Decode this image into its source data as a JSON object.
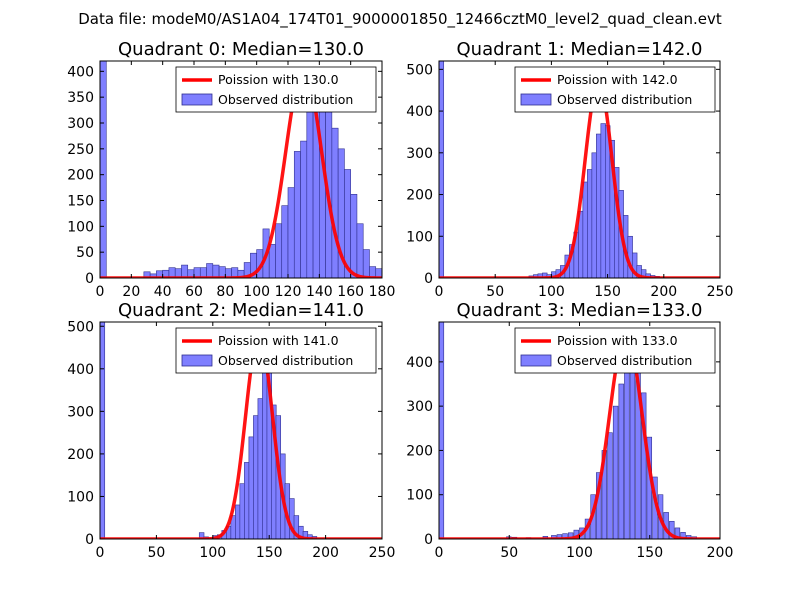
{
  "figure": {
    "suptitle": "Data file: modeM0/AS1A04_174T01_9000001850_12466cztM0_level2_quad_clean.evt"
  },
  "colors": {
    "hist_fill": "#7f7fff",
    "hist_edge": "#2f2f8f",
    "fit_line": "#ff0000"
  },
  "chart_data": [
    {
      "type": "bar",
      "title": "Quadrant 0: Median=130.0",
      "xlim": [
        0,
        180
      ],
      "ylim": [
        0,
        420
      ],
      "xticks": [
        "0",
        "20",
        "40",
        "60",
        "80",
        "100",
        "120",
        "140",
        "160",
        "180"
      ],
      "yticks": [
        "0",
        "50",
        "100",
        "150",
        "200",
        "250",
        "300",
        "350",
        "400"
      ],
      "bin_width": 4,
      "bins": [
        [
          0,
          420
        ],
        [
          28,
          12
        ],
        [
          32,
          8
        ],
        [
          36,
          14
        ],
        [
          40,
          15
        ],
        [
          44,
          20
        ],
        [
          48,
          18
        ],
        [
          52,
          25
        ],
        [
          56,
          16
        ],
        [
          60,
          20
        ],
        [
          64,
          20
        ],
        [
          68,
          28
        ],
        [
          72,
          25
        ],
        [
          76,
          22
        ],
        [
          80,
          18
        ],
        [
          84,
          20
        ],
        [
          88,
          15
        ],
        [
          92,
          30
        ],
        [
          96,
          48
        ],
        [
          100,
          55
        ],
        [
          104,
          95
        ],
        [
          108,
          65
        ],
        [
          112,
          105
        ],
        [
          116,
          140
        ],
        [
          120,
          175
        ],
        [
          124,
          245
        ],
        [
          128,
          265
        ],
        [
          132,
          330
        ],
        [
          136,
          400
        ],
        [
          140,
          375
        ],
        [
          144,
          330
        ],
        [
          148,
          290
        ],
        [
          152,
          250
        ],
        [
          156,
          210
        ],
        [
          160,
          162
        ],
        [
          164,
          105
        ],
        [
          168,
          55
        ],
        [
          172,
          22
        ],
        [
          176,
          18
        ]
      ],
      "series": [
        {
          "name": "Poission with 130.0",
          "kind": "line",
          "mu": 130.0,
          "peak": 405
        },
        {
          "name": "Observed distribution",
          "kind": "hist"
        }
      ],
      "legend_position": "upper-right"
    },
    {
      "type": "bar",
      "title": "Quadrant 1: Median=142.0",
      "xlim": [
        0,
        250
      ],
      "ylim": [
        0,
        520
      ],
      "xticks": [
        "0",
        "50",
        "100",
        "150",
        "200",
        "250"
      ],
      "yticks": [
        "0",
        "100",
        "200",
        "300",
        "400",
        "500"
      ],
      "bin_width": 4.2,
      "bins": [
        [
          0,
          520
        ],
        [
          80,
          5
        ],
        [
          84,
          8
        ],
        [
          88,
          10
        ],
        [
          92,
          12
        ],
        [
          96,
          8
        ],
        [
          100,
          15
        ],
        [
          104,
          20
        ],
        [
          108,
          30
        ],
        [
          112,
          55
        ],
        [
          116,
          80
        ],
        [
          120,
          110
        ],
        [
          124,
          160
        ],
        [
          128,
          230
        ],
        [
          132,
          260
        ],
        [
          136,
          300
        ],
        [
          140,
          345
        ],
        [
          144,
          370
        ],
        [
          148,
          365
        ],
        [
          152,
          330
        ],
        [
          156,
          265
        ],
        [
          160,
          210
        ],
        [
          164,
          150
        ],
        [
          168,
          100
        ],
        [
          172,
          60
        ],
        [
          176,
          30
        ],
        [
          180,
          20
        ],
        [
          184,
          10
        ],
        [
          188,
          6
        ],
        [
          192,
          4
        ]
      ],
      "series": [
        {
          "name": "Poission with 142.0",
          "kind": "line",
          "mu": 142.0,
          "peak": 470
        },
        {
          "name": "Observed distribution",
          "kind": "hist"
        }
      ],
      "legend_position": "upper-right"
    },
    {
      "type": "bar",
      "title": "Quadrant 2: Median=141.0",
      "xlim": [
        0,
        250
      ],
      "ylim": [
        0,
        510
      ],
      "xticks": [
        "0",
        "50",
        "100",
        "150",
        "200",
        "250"
      ],
      "yticks": [
        "0",
        "100",
        "200",
        "300",
        "400",
        "500"
      ],
      "bin_width": 4.2,
      "bins": [
        [
          0,
          510
        ],
        [
          88,
          15
        ],
        [
          92,
          5
        ],
        [
          100,
          8
        ],
        [
          104,
          10
        ],
        [
          108,
          20
        ],
        [
          112,
          30
        ],
        [
          116,
          55
        ],
        [
          120,
          80
        ],
        [
          124,
          130
        ],
        [
          128,
          180
        ],
        [
          132,
          240
        ],
        [
          136,
          290
        ],
        [
          140,
          330
        ],
        [
          144,
          470
        ],
        [
          148,
          420
        ],
        [
          152,
          315
        ],
        [
          156,
          290
        ],
        [
          160,
          200
        ],
        [
          164,
          130
        ],
        [
          168,
          95
        ],
        [
          172,
          55
        ],
        [
          176,
          30
        ],
        [
          180,
          18
        ],
        [
          184,
          10
        ],
        [
          188,
          6
        ]
      ],
      "series": [
        {
          "name": "Poission with 141.0",
          "kind": "line",
          "mu": 141.0,
          "peak": 480
        },
        {
          "name": "Observed distribution",
          "kind": "hist"
        }
      ],
      "legend_position": "upper-right"
    },
    {
      "type": "bar",
      "title": "Quadrant 3: Median=133.0",
      "xlim": [
        0,
        200
      ],
      "ylim": [
        0,
        490
      ],
      "xticks": [
        "0",
        "50",
        "100",
        "150",
        "200"
      ],
      "yticks": [
        "0",
        "100",
        "200",
        "300",
        "400"
      ],
      "bin_width": 3.4,
      "bins": [
        [
          0,
          490
        ],
        [
          48,
          5
        ],
        [
          52,
          4
        ],
        [
          62,
          3
        ],
        [
          74,
          6
        ],
        [
          80,
          8
        ],
        [
          84,
          10
        ],
        [
          88,
          12
        ],
        [
          92,
          14
        ],
        [
          96,
          20
        ],
        [
          100,
          25
        ],
        [
          104,
          45
        ],
        [
          108,
          100
        ],
        [
          112,
          150
        ],
        [
          116,
          200
        ],
        [
          120,
          240
        ],
        [
          124,
          300
        ],
        [
          128,
          350
        ],
        [
          132,
          390
        ],
        [
          136,
          440
        ],
        [
          140,
          410
        ],
        [
          144,
          330
        ],
        [
          148,
          230
        ],
        [
          152,
          140
        ],
        [
          156,
          100
        ],
        [
          160,
          60
        ],
        [
          164,
          40
        ],
        [
          168,
          25
        ],
        [
          172,
          15
        ],
        [
          176,
          8
        ],
        [
          180,
          5
        ]
      ],
      "series": [
        {
          "name": "Poission with 133.0",
          "kind": "line",
          "mu": 133.0,
          "peak": 465
        },
        {
          "name": "Observed distribution",
          "kind": "hist"
        }
      ],
      "legend_position": "upper-right"
    }
  ]
}
